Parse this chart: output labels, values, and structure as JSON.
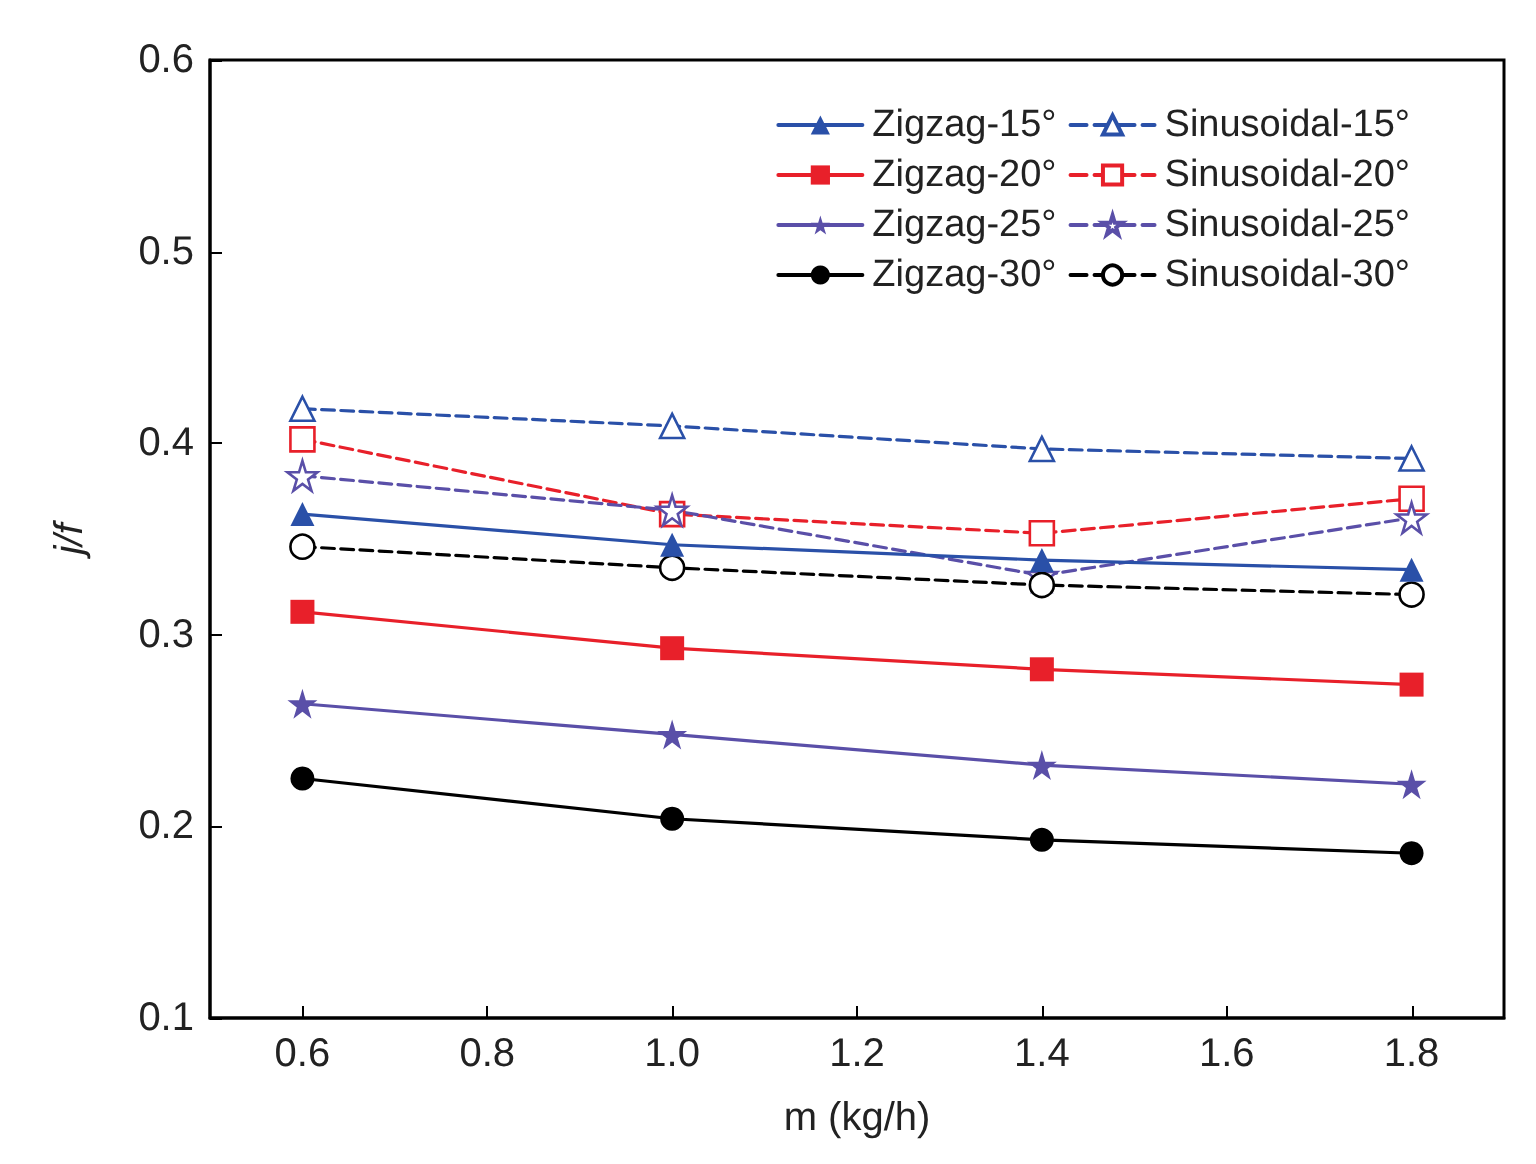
{
  "chart_data": {
    "type": "line",
    "xlabel": "m (kg/h)",
    "ylabel": "j/f",
    "x": [
      0.6,
      1.0,
      1.4,
      1.8
    ],
    "xlim": [
      0.5,
      1.9
    ],
    "xticks": [
      0.6,
      0.8,
      "1.0",
      1.2,
      1.4,
      1.6,
      1.8
    ],
    "ylim": [
      0.1,
      0.6
    ],
    "yticks": [
      0.1,
      0.2,
      0.3,
      0.4,
      0.5,
      0.6
    ],
    "grid": false,
    "legend": "top right",
    "series": [
      {
        "name": "Zigzag-15°",
        "color": "#2a50a8",
        "marker": "triangle",
        "line_style": "solid",
        "values": [
          0.363,
          0.347,
          0.339,
          0.334
        ]
      },
      {
        "name": "Sinusoidal-15°",
        "color": "#2a50a8",
        "marker": "triangle",
        "line_style": "dashed",
        "values": [
          0.418,
          0.409,
          0.397,
          0.392
        ]
      },
      {
        "name": "Zigzag-20°",
        "color": "#e8202a",
        "marker": "square",
        "line_style": "solid",
        "values": [
          0.312,
          0.293,
          0.282,
          0.274
        ]
      },
      {
        "name": "Sinusoidal-20°",
        "color": "#e8202a",
        "marker": "square",
        "line_style": "dashed",
        "values": [
          0.402,
          0.363,
          0.353,
          0.371
        ]
      },
      {
        "name": "Zigzag-25°",
        "color": "#5a4fa8",
        "marker": "star",
        "line_style": "solid",
        "values": [
          0.264,
          0.248,
          0.232,
          0.222
        ]
      },
      {
        "name": "Sinusoidal-25°",
        "color": "#5a4fa8",
        "marker": "star",
        "line_style": "dashed",
        "values": [
          0.383,
          0.365,
          0.331,
          0.361
        ]
      },
      {
        "name": "Zigzag-30°",
        "color": "#000000",
        "marker": "circle",
        "line_style": "solid",
        "values": [
          0.225,
          0.204,
          0.193,
          0.186
        ]
      },
      {
        "name": "Sinusoidal-30°",
        "color": "#000000",
        "marker": "circle",
        "line_style": "dashed",
        "values": [
          0.346,
          0.335,
          0.326,
          0.321
        ]
      }
    ]
  }
}
